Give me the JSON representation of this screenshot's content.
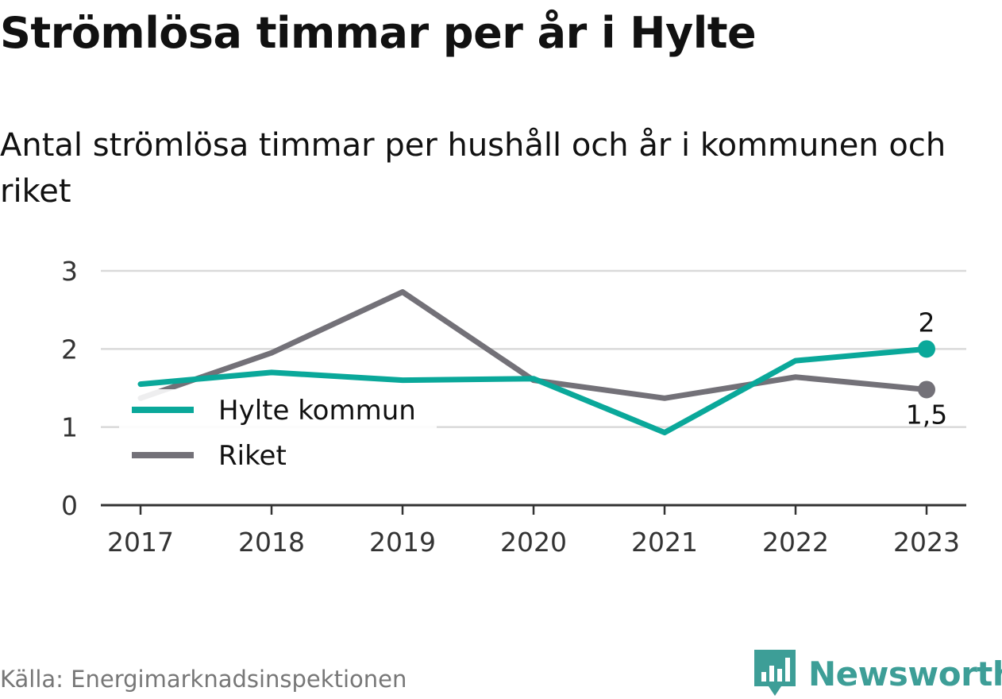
{
  "title": "Strömlösa timmar per år i Hylte",
  "subtitle": "Antal strömlösa timmar per hushåll och år i kommunen och riket",
  "source": "Källa: Energimarknadsinspektionen",
  "brand": "Newsworthy",
  "colors": {
    "hylte": "#0aa89a",
    "riket": "#737178",
    "grid": "#d9d9d9",
    "axis": "#333333",
    "brand": "#3d9e97"
  },
  "chart_data": {
    "type": "line",
    "x": [
      "2017",
      "2018",
      "2019",
      "2020",
      "2021",
      "2022",
      "2023"
    ],
    "ylim": [
      0,
      3
    ],
    "yticks": [
      "0",
      "1",
      "2",
      "3"
    ],
    "grid": true,
    "legend": "left",
    "series": [
      {
        "name": "Hylte kommun",
        "values": [
          1.55,
          1.7,
          1.6,
          1.62,
          0.93,
          1.85,
          2.0
        ],
        "end_label": "2"
      },
      {
        "name": "Riket",
        "values": [
          1.37,
          1.95,
          2.73,
          1.6,
          1.37,
          1.64,
          1.48
        ],
        "end_label": "1,5"
      }
    ]
  }
}
